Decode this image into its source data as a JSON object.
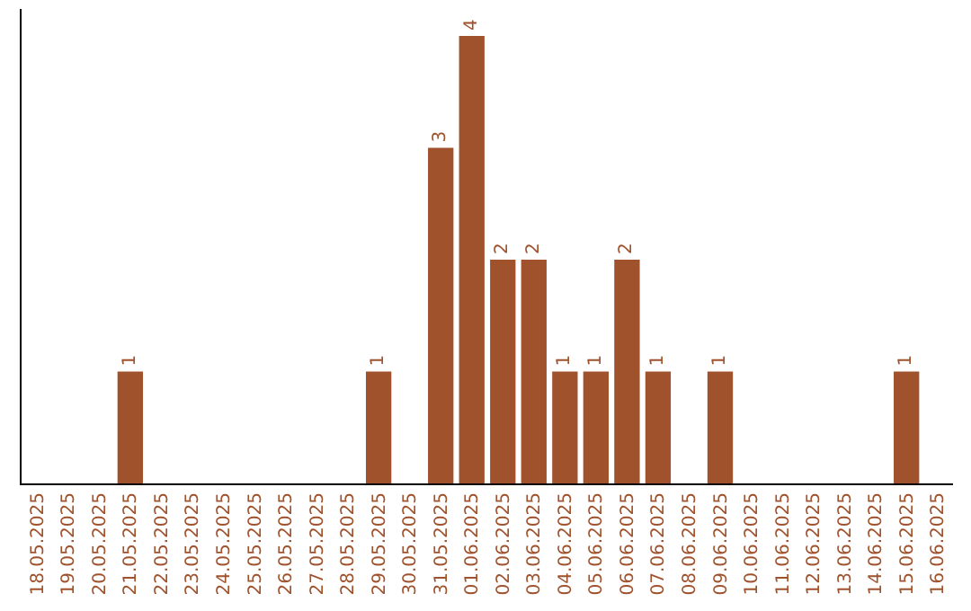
{
  "chart_data": {
    "type": "bar",
    "categories": [
      "18.05.2025",
      "19.05.2025",
      "20.05.2025",
      "21.05.2025",
      "22.05.2025",
      "23.05.2025",
      "24.05.2025",
      "25.05.2025",
      "26.05.2025",
      "27.05.2025",
      "28.05.2025",
      "29.05.2025",
      "30.05.2025",
      "31.05.2025",
      "01.06.2025",
      "02.06.2025",
      "03.06.2025",
      "04.06.2025",
      "05.06.2025",
      "06.06.2025",
      "07.06.2025",
      "08.06.2025",
      "09.06.2025",
      "10.06.2025",
      "11.06.2025",
      "12.06.2025",
      "13.06.2025",
      "14.06.2025",
      "15.06.2025",
      "16.06.2025"
    ],
    "values": [
      0,
      0,
      0,
      1,
      0,
      0,
      0,
      0,
      0,
      0,
      0,
      1,
      0,
      3,
      4,
      2,
      2,
      1,
      1,
      2,
      1,
      0,
      1,
      0,
      0,
      0,
      0,
      0,
      1,
      0
    ],
    "value_labels": [
      null,
      null,
      null,
      "1",
      null,
      null,
      null,
      null,
      null,
      null,
      null,
      "1",
      null,
      "3",
      "4",
      "2",
      "2",
      "1",
      "1",
      "2",
      "1",
      null,
      "1",
      null,
      null,
      null,
      null,
      null,
      "1",
      null
    ],
    "color": "#a0522d",
    "grid": false,
    "legend": false,
    "tick_labels": "x"
  }
}
